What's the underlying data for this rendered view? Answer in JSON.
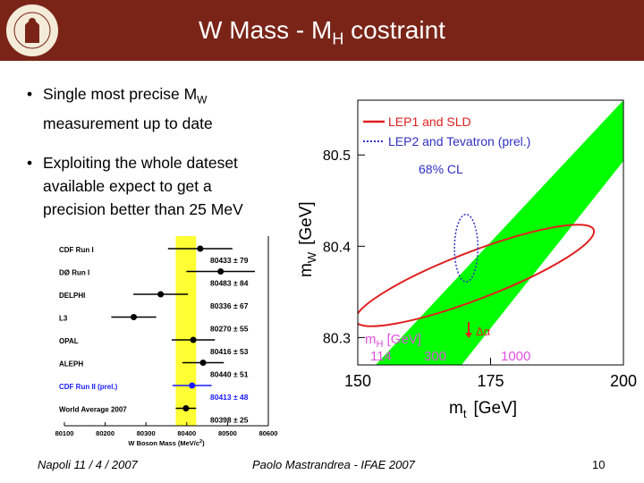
{
  "title": {
    "main": "W Mass - M",
    "sub": "H",
    "rest": " costraint"
  },
  "logo": {
    "ring_text": "FENAROS MUNIVERSITATIS",
    "icon": "university-seal"
  },
  "bullets": [
    {
      "line1_main": "Single most precise M",
      "line1_sub": "W",
      "line2": "measurement up to date"
    },
    {
      "line1": "Exploiting the whole dateset",
      "line2": "available expect to get a",
      "line3": "precision better than 25 MeV"
    }
  ],
  "footer": {
    "left": "Napoli 11 / 4 / 2007",
    "center": "Paolo Mastrandrea - IFAE 2007",
    "page": "10"
  },
  "chart_data": [
    {
      "type": "scatter",
      "xlabel": "W Boson Mass (MeV/c",
      "xlabel_sup": "2",
      "xlabel_close": ")",
      "xlim": [
        80100,
        80600
      ],
      "xticks": [
        "80100",
        "80200",
        "80300",
        "80400",
        "80500",
        "80600"
      ],
      "band_color": "#ffff33",
      "categories": [
        "CDF Run I",
        "DØ Run I",
        "DELPHI",
        "L3",
        "OPAL",
        "ALEPH",
        "CDF Run II (prel.)",
        "World Average 2007"
      ],
      "values": [
        80433,
        80483,
        80336,
        80270,
        80416,
        80440,
        80413,
        80398
      ],
      "errors": [
        79,
        84,
        67,
        55,
        53,
        51,
        48,
        25
      ],
      "labels": [
        "80433 ± 79",
        "80483 ± 84",
        "80336 ± 67",
        "80270 ± 55",
        "80416 ± 53",
        "80440 ± 51",
        "80413 ± 48",
        "80398 ± 25"
      ],
      "highlight_color": "#1a1aff"
    },
    {
      "type": "area",
      "xlabel": "m",
      "xlabel_sub": "t",
      "xlabel_unit": "[GeV]",
      "ylabel": "m",
      "ylabel_sub": "W",
      "ylabel_unit": "[GeV]",
      "xlim": [
        150,
        200
      ],
      "ylim": [
        80.27,
        80.56
      ],
      "xticks": [
        "150",
        "175",
        "200"
      ],
      "yticks": [
        "80.3",
        "80.4",
        "80.5"
      ],
      "legend": [
        {
          "label": "LEP1 and SLD",
          "color": "#e02020",
          "style": "solid"
        },
        {
          "label": "LEP2 and Tevatron (prel.)",
          "color": "#3030c0",
          "style": "dotted"
        }
      ],
      "cl_label": "68% CL",
      "higgs_label": "m",
      "higgs_sub": "H",
      "higgs_unit": " [GeV]",
      "higgs_masses": [
        "114",
        "300",
        "1000"
      ],
      "alpha_label": "Δα",
      "band_color": "#00ff00",
      "higgs_color": "#e050e0",
      "lep1_ellipse": {
        "cx": 172,
        "cy": 80.368,
        "rx": 24,
        "ry": 0.026,
        "angle": 21
      },
      "lep2_ellipse": {
        "cx": 170.4,
        "cy": 80.398,
        "rx": 2.2,
        "ry": 0.037
      }
    }
  ]
}
